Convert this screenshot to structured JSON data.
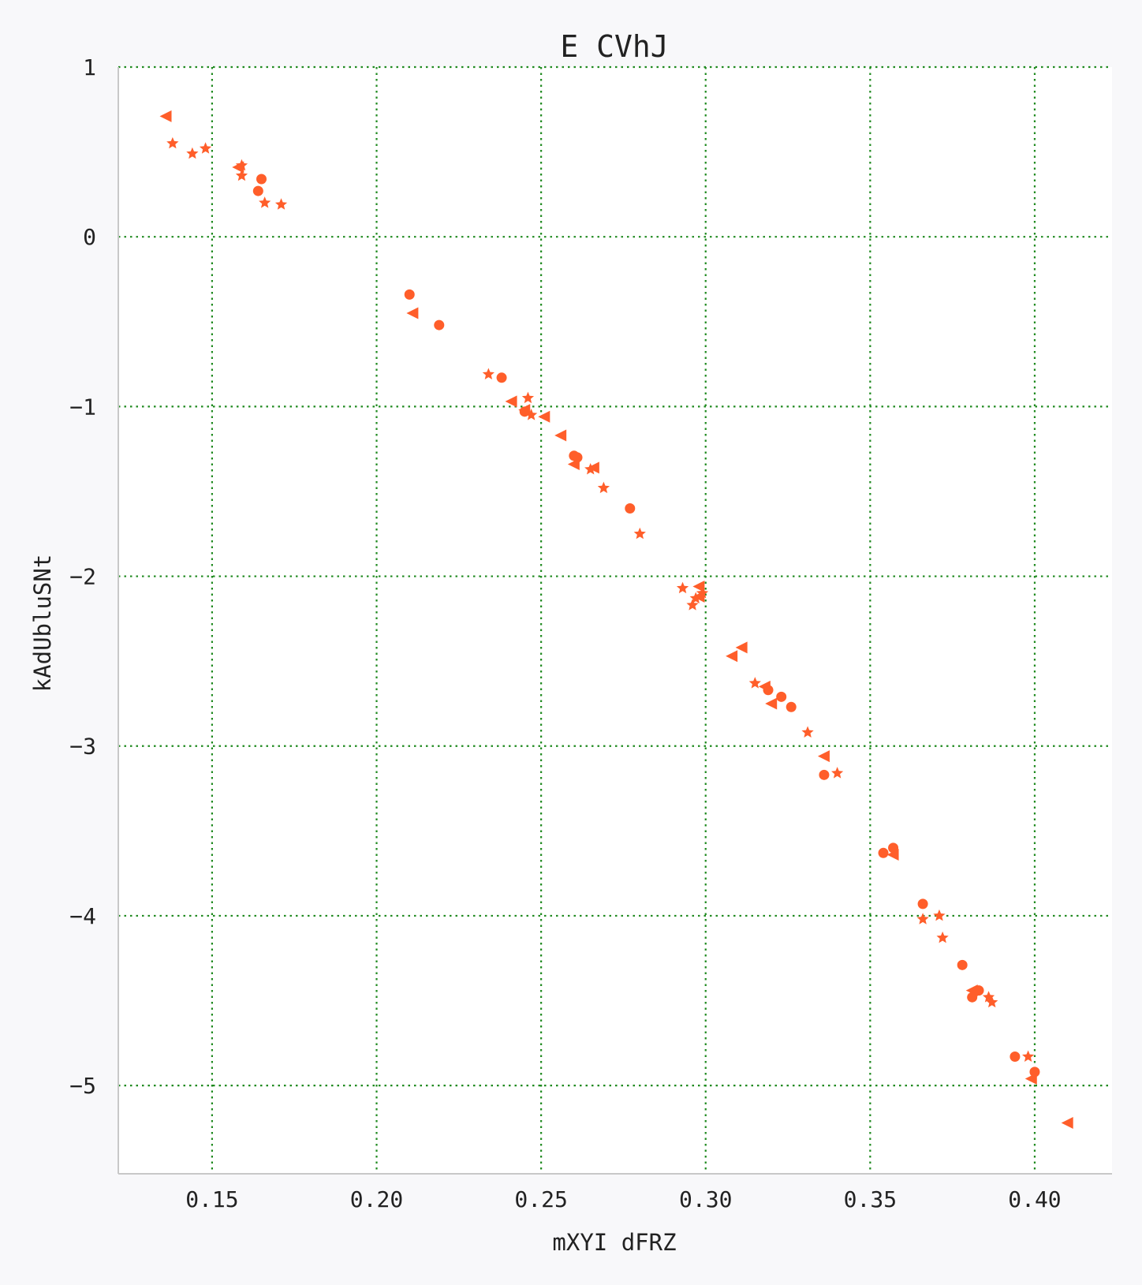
{
  "chart_data": {
    "type": "scatter",
    "title": "E CVhJ",
    "xlabel": "mXYI dFRZ",
    "ylabel": "kAdUbluSNt",
    "xlim": [
      0.1215,
      0.4235
    ],
    "ylim": [
      -5.52,
      1.0
    ],
    "x_ticks": [
      0.15,
      0.2,
      0.25,
      0.3,
      0.35,
      0.4
    ],
    "x_tick_labels": [
      "0.15",
      "0.20",
      "0.25",
      "0.30",
      "0.35",
      "0.40"
    ],
    "y_ticks": [
      1,
      0,
      -1,
      -2,
      -3,
      -4,
      -5
    ],
    "y_tick_labels": [
      "1",
      "0",
      "−1",
      "−2",
      "−3",
      "−4",
      "−5"
    ],
    "grid": true,
    "colors": {
      "marker": "#ff5e2a",
      "grid": "#1f8a1f",
      "axes": "#c8c8c8",
      "plot_bg": "#ffffff",
      "page_bg": "#f8f8fa"
    },
    "series": [
      {
        "marker": "circle",
        "points": [
          [
            0.165,
            0.34
          ],
          [
            0.164,
            0.27
          ],
          [
            0.21,
            -0.34
          ],
          [
            0.219,
            -0.52
          ],
          [
            0.238,
            -0.83
          ],
          [
            0.245,
            -1.03
          ],
          [
            0.26,
            -1.29
          ],
          [
            0.261,
            -1.3
          ],
          [
            0.277,
            -1.6
          ],
          [
            0.319,
            -2.67
          ],
          [
            0.323,
            -2.71
          ],
          [
            0.326,
            -2.77
          ],
          [
            0.336,
            -3.17
          ],
          [
            0.354,
            -3.63
          ],
          [
            0.357,
            -3.6
          ],
          [
            0.366,
            -3.93
          ],
          [
            0.378,
            -4.29
          ],
          [
            0.381,
            -4.48
          ],
          [
            0.383,
            -4.44
          ],
          [
            0.394,
            -4.83
          ],
          [
            0.4,
            -4.92
          ]
        ]
      },
      {
        "marker": "triangle-left",
        "points": [
          [
            0.136,
            0.71
          ],
          [
            0.158,
            0.41
          ],
          [
            0.211,
            -0.45
          ],
          [
            0.241,
            -0.97
          ],
          [
            0.245,
            -1.02
          ],
          [
            0.251,
            -1.06
          ],
          [
            0.256,
            -1.17
          ],
          [
            0.26,
            -1.34
          ],
          [
            0.266,
            -1.36
          ],
          [
            0.298,
            -2.06
          ],
          [
            0.298,
            -2.12
          ],
          [
            0.308,
            -2.47
          ],
          [
            0.311,
            -2.42
          ],
          [
            0.318,
            -2.65
          ],
          [
            0.32,
            -2.75
          ],
          [
            0.336,
            -3.06
          ],
          [
            0.357,
            -3.64
          ],
          [
            0.381,
            -4.44
          ],
          [
            0.399,
            -4.96
          ],
          [
            0.41,
            -5.22
          ]
        ]
      },
      {
        "marker": "star",
        "points": [
          [
            0.138,
            0.55
          ],
          [
            0.144,
            0.49
          ],
          [
            0.148,
            0.52
          ],
          [
            0.159,
            0.42
          ],
          [
            0.159,
            0.36
          ],
          [
            0.166,
            0.2
          ],
          [
            0.171,
            0.19
          ],
          [
            0.234,
            -0.81
          ],
          [
            0.246,
            -0.95
          ],
          [
            0.247,
            -1.05
          ],
          [
            0.265,
            -1.37
          ],
          [
            0.269,
            -1.48
          ],
          [
            0.28,
            -1.75
          ],
          [
            0.293,
            -2.07
          ],
          [
            0.296,
            -2.17
          ],
          [
            0.297,
            -2.13
          ],
          [
            0.299,
            -2.1
          ],
          [
            0.315,
            -2.63
          ],
          [
            0.331,
            -2.92
          ],
          [
            0.34,
            -3.16
          ],
          [
            0.366,
            -4.02
          ],
          [
            0.371,
            -4.0
          ],
          [
            0.372,
            -4.13
          ],
          [
            0.386,
            -4.48
          ],
          [
            0.387,
            -4.51
          ],
          [
            0.398,
            -4.83
          ]
        ]
      }
    ]
  }
}
